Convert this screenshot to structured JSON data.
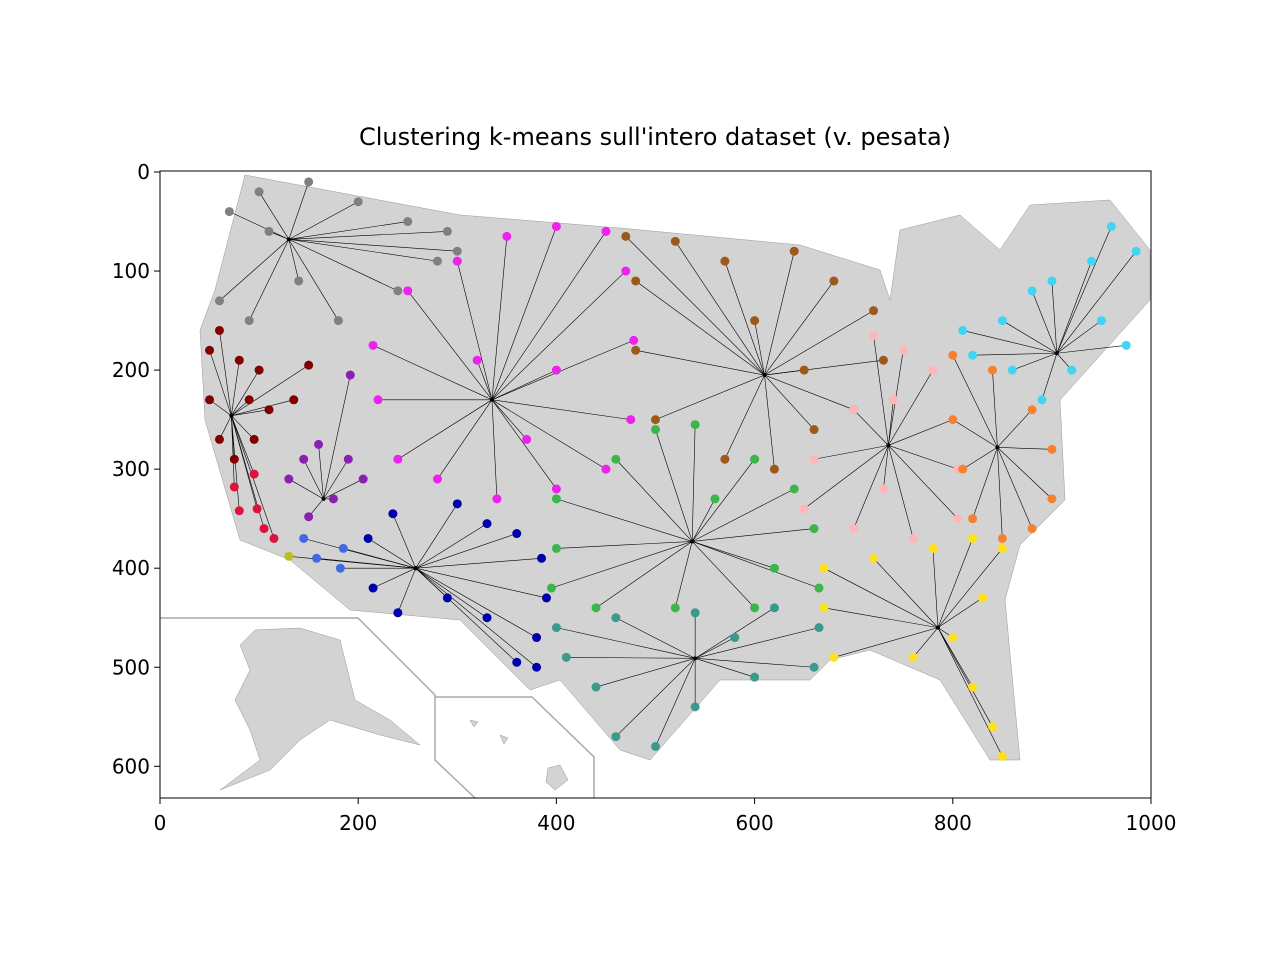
{
  "chart_data": {
    "type": "scatter",
    "title": "Clustering k-means sull'intero dataset (v. pesata)",
    "xlim": [
      0,
      1000
    ],
    "ylim": [
      632,
      -1
    ],
    "xticks": [
      0,
      200,
      400,
      600,
      800,
      1000
    ],
    "yticks": [
      0,
      100,
      200,
      300,
      400,
      500,
      600
    ],
    "series": [
      {
        "color": "#808080",
        "centroid_x": 130,
        "centroid_y": 68,
        "x": [
          70,
          100,
          150,
          200,
          250,
          290,
          300,
          60,
          90,
          180,
          240,
          280,
          140,
          110
        ],
        "y": [
          40,
          20,
          10,
          30,
          50,
          60,
          80,
          130,
          150,
          150,
          120,
          90,
          110,
          60
        ]
      },
      {
        "color": "#ee22ee",
        "centroid_x": 335,
        "centroid_y": 230,
        "x": [
          215,
          250,
          300,
          350,
          400,
          450,
          470,
          478,
          475,
          450,
          400,
          340,
          280,
          240,
          220,
          320,
          400,
          370
        ],
        "y": [
          175,
          120,
          90,
          65,
          55,
          60,
          100,
          170,
          250,
          300,
          320,
          330,
          310,
          290,
          230,
          190,
          200,
          270
        ]
      },
      {
        "color": "#9b5a1a",
        "centroid_x": 610,
        "centroid_y": 205,
        "x": [
          470,
          520,
          570,
          640,
          680,
          720,
          730,
          700,
          660,
          620,
          570,
          500,
          480,
          480,
          600,
          650
        ],
        "y": [
          65,
          70,
          90,
          80,
          110,
          140,
          190,
          240,
          260,
          300,
          290,
          250,
          180,
          110,
          150,
          200
        ]
      },
      {
        "color": "#800000",
        "centroid_x": 72,
        "centroid_y": 246,
        "x": [
          50,
          60,
          80,
          100,
          150,
          135,
          110,
          60,
          75,
          95,
          50,
          90
        ],
        "y": [
          180,
          160,
          190,
          200,
          195,
          230,
          240,
          270,
          290,
          270,
          230,
          230
        ]
      },
      {
        "color": "#dc143c",
        "centroid_x": 72,
        "centroid_y": 246,
        "x": [
          75,
          80,
          98,
          105,
          115,
          95
        ],
        "y": [
          318,
          342,
          340,
          360,
          370,
          305
        ]
      },
      {
        "color": "#8b20b0",
        "centroid_x": 165,
        "centroid_y": 330,
        "x": [
          192,
          160,
          190,
          205,
          150,
          130,
          145,
          175
        ],
        "y": [
          205,
          275,
          290,
          310,
          348,
          310,
          290,
          330
        ]
      },
      {
        "color": "#0000aa",
        "centroid_x": 258,
        "centroid_y": 400,
        "x": [
          210,
          235,
          300,
          330,
          360,
          385,
          390,
          380,
          330,
          290,
          240,
          215,
          360,
          380
        ],
        "y": [
          370,
          345,
          335,
          355,
          365,
          390,
          430,
          470,
          450,
          430,
          445,
          420,
          495,
          500
        ]
      },
      {
        "color": "#4169e1",
        "centroid_x": 258,
        "centroid_y": 400,
        "x": [
          145,
          158,
          185,
          182
        ],
        "y": [
          370,
          390,
          380,
          400
        ]
      },
      {
        "color": "#bcbd22",
        "centroid_x": 258,
        "centroid_y": 400,
        "x": [
          130
        ],
        "y": [
          388
        ]
      },
      {
        "color": "#3cb64a",
        "centroid_x": 537,
        "centroid_y": 373,
        "x": [
          400,
          460,
          500,
          540,
          600,
          640,
          660,
          665,
          600,
          520,
          440,
          395,
          400,
          560,
          620
        ],
        "y": [
          330,
          290,
          260,
          255,
          290,
          320,
          360,
          420,
          440,
          440,
          440,
          420,
          380,
          330,
          400
        ]
      },
      {
        "color": "#3c9a8c",
        "centroid_x": 540,
        "centroid_y": 491,
        "x": [
          400,
          460,
          540,
          620,
          665,
          660,
          600,
          540,
          500,
          460,
          440,
          410,
          580
        ],
        "y": [
          460,
          450,
          445,
          440,
          460,
          500,
          510,
          540,
          580,
          570,
          520,
          490,
          470
        ]
      },
      {
        "color": "#ffb6b8",
        "centroid_x": 735,
        "centroid_y": 276,
        "x": [
          720,
          750,
          740,
          780,
          800,
          805,
          805,
          760,
          700,
          650,
          660,
          700,
          730
        ],
        "y": [
          165,
          180,
          230,
          200,
          250,
          300,
          350,
          370,
          360,
          340,
          290,
          240,
          320
        ]
      },
      {
        "color": "#f58232",
        "centroid_x": 845,
        "centroid_y": 278,
        "x": [
          800,
          840,
          880,
          900,
          900,
          880,
          850,
          820,
          810,
          800
        ],
        "y": [
          185,
          200,
          240,
          280,
          330,
          360,
          370,
          350,
          300,
          250
        ]
      },
      {
        "color": "#ffe119",
        "centroid_x": 785,
        "centroid_y": 460,
        "x": [
          670,
          720,
          780,
          820,
          850,
          830,
          800,
          820,
          840,
          850,
          760,
          680,
          670
        ],
        "y": [
          400,
          390,
          380,
          370,
          380,
          430,
          470,
          520,
          560,
          590,
          490,
          490,
          440
        ]
      },
      {
        "color": "#42d4f4",
        "centroid_x": 905,
        "centroid_y": 183,
        "x": [
          810,
          850,
          880,
          900,
          940,
          960,
          985,
          950,
          975,
          920,
          890,
          860,
          820
        ],
        "y": [
          160,
          150,
          120,
          110,
          90,
          55,
          80,
          150,
          175,
          200,
          230,
          200,
          185
        ]
      }
    ]
  }
}
